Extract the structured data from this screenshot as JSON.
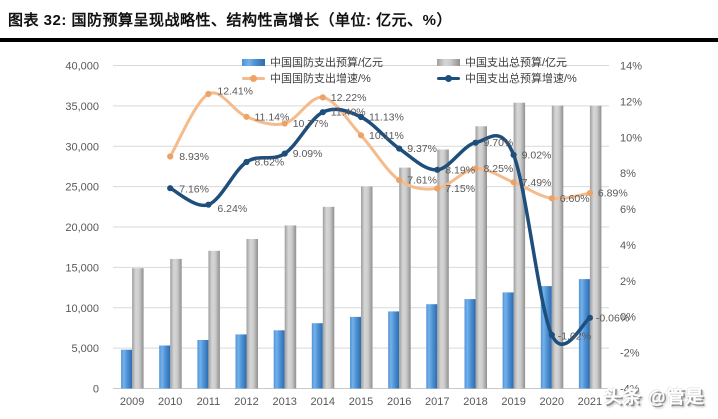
{
  "header": {
    "title": "图表 32: 国防预算呈现战略性、结构性高增长（单位: 亿元、%）"
  },
  "watermark": {
    "text": "头条 @管是"
  },
  "colors": {
    "defense_bar": "#4f93d6",
    "total_bar": "#c0c0c0",
    "defense_growth_line": "#f4bb8d",
    "defense_growth_marker": "#eca368",
    "total_growth_line": "#1e4e7c",
    "label_text": "#595959",
    "gridline": "#d9d9d9",
    "baseline": "#c9c9c9"
  },
  "chart_data": {
    "type": "combo",
    "categories": [
      "2009",
      "2010",
      "2011",
      "2012",
      "2013",
      "2014",
      "2015",
      "2016",
      "2017",
      "2018",
      "2019",
      "2020",
      "2021"
    ],
    "series": [
      {
        "name": "中国国防支出预算/亿元",
        "type": "bar",
        "axis": "left",
        "color_key": "defense_bar",
        "values": [
          4807,
          5321,
          6011,
          6703,
          7202,
          8082,
          8869,
          9544,
          10444,
          11070,
          11899,
          12680,
          13553
        ]
      },
      {
        "name": "中国支出总预算/亿元",
        "type": "bar",
        "axis": "left",
        "color_key": "total_bar",
        "values": [
          14901,
          16049,
          17050,
          18519,
          20203,
          22506,
          25012,
          27355,
          29595,
          32466,
          35395,
          35035,
          35015
        ]
      },
      {
        "name": "中国国防支出增速/%",
        "type": "line",
        "axis": "right",
        "color_key": "defense_growth_line",
        "values": [
          null,
          8.93,
          12.41,
          11.14,
          10.77,
          12.22,
          10.11,
          7.61,
          7.15,
          8.25,
          7.49,
          6.6,
          6.89
        ],
        "point_labels": [
          "",
          "8.93%",
          "12.41%",
          "11.14%",
          "10.77%",
          "12.22%",
          "10.11%",
          "7.61%",
          "7.15%",
          "8.25%",
          "7.49%",
          "6.60%",
          "6.89%"
        ]
      },
      {
        "name": "中国支出总预算增速/%",
        "type": "line",
        "axis": "right",
        "color_key": "total_growth_line",
        "values": [
          null,
          7.16,
          6.24,
          8.62,
          9.09,
          11.4,
          11.13,
          9.37,
          8.19,
          9.7,
          9.02,
          -1.02,
          -0.06
        ],
        "point_labels": [
          "",
          "7.16%",
          "6.24%",
          "8.62%",
          "9.09%",
          "11.40%",
          "11.13%",
          "9.37%",
          "8.19%",
          "9.70%",
          "9.02%",
          "-1.02%",
          "-0.06%"
        ]
      }
    ],
    "axes": {
      "left": {
        "min": 0,
        "max": 40000,
        "ticks": [
          "0",
          "5,000",
          "10,000",
          "15,000",
          "20,000",
          "25,000",
          "30,000",
          "35,000",
          "40,000"
        ]
      },
      "right": {
        "min": -4,
        "max": 14,
        "ticks": [
          "-4%",
          "-2%",
          "0%",
          "2%",
          "4%",
          "6%",
          "8%",
          "10%",
          "12%",
          "14%"
        ]
      }
    },
    "grid": true,
    "legend_position": "top"
  }
}
